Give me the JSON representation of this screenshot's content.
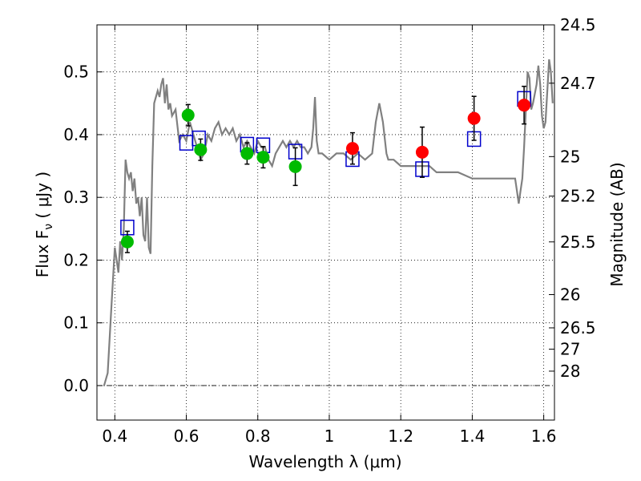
{
  "chart_data": {
    "type": "scatter",
    "xlabel": "Wavelength  λ (μm)",
    "ylabel": "Flux  F",
    "ylabel_sub": "ν",
    "ylabel_unit": "  ( μJy )",
    "y2label": "Magnitude (AB)",
    "xlim": [
      0.35,
      1.63
    ],
    "ylim": [
      -0.055,
      0.575
    ],
    "x_ticks": [
      0.4,
      0.6,
      0.8,
      1.0,
      1.2,
      1.4,
      1.6
    ],
    "x_tick_labels": [
      "0.4",
      "0.6",
      "0.8",
      "1",
      "1.2",
      "1.4",
      "1.6"
    ],
    "y_ticks": [
      0.0,
      0.1,
      0.2,
      0.3,
      0.4,
      0.5
    ],
    "y_tick_labels": [
      "0.0",
      "0.1",
      "0.2",
      "0.3",
      "0.4",
      "0.5"
    ],
    "y2_ticks": [
      {
        "flux": 0.575,
        "label": "24.5"
      },
      {
        "flux": 0.482,
        "label": "24.7"
      },
      {
        "flux": 0.365,
        "label": "25"
      },
      {
        "flux": 0.302,
        "label": "25.2"
      },
      {
        "flux": 0.229,
        "label": "25.5"
      },
      {
        "flux": 0.145,
        "label": "26"
      },
      {
        "flux": 0.092,
        "label": "26.5"
      },
      {
        "flux": 0.058,
        "label": "27"
      },
      {
        "flux": 0.023,
        "label": "28"
      }
    ],
    "grid": true,
    "colors": {
      "model": "#808080",
      "optical": "#00bb00",
      "infrared": "#ff0000",
      "model_photometry": "#0000cc",
      "errorbar": "#000000"
    },
    "series": [
      {
        "type": "line",
        "x": [
          0.37,
          0.38,
          0.39,
          0.4,
          0.41,
          0.415,
          0.42,
          0.425,
          0.43,
          0.435,
          0.44,
          0.445,
          0.45,
          0.455,
          0.46,
          0.465,
          0.47,
          0.475,
          0.48,
          0.485,
          0.49,
          0.495,
          0.5,
          0.505,
          0.51,
          0.52,
          0.525,
          0.53,
          0.535,
          0.54,
          0.545,
          0.55,
          0.555,
          0.56,
          0.57,
          0.58,
          0.59,
          0.6,
          0.61,
          0.62,
          0.63,
          0.64,
          0.65,
          0.66,
          0.67,
          0.68,
          0.69,
          0.7,
          0.71,
          0.72,
          0.73,
          0.74,
          0.75,
          0.76,
          0.77,
          0.78,
          0.79,
          0.8,
          0.81,
          0.82,
          0.83,
          0.84,
          0.85,
          0.86,
          0.87,
          0.88,
          0.89,
          0.9,
          0.91,
          0.92,
          0.93,
          0.94,
          0.95,
          0.955,
          0.96,
          0.965,
          0.97,
          0.98,
          1.0,
          1.02,
          1.04,
          1.06,
          1.08,
          1.1,
          1.12,
          1.13,
          1.14,
          1.15,
          1.16,
          1.165,
          1.17,
          1.18,
          1.2,
          1.22,
          1.25,
          1.28,
          1.3,
          1.33,
          1.36,
          1.4,
          1.44,
          1.48,
          1.5,
          1.52,
          1.525,
          1.53,
          1.535,
          1.54,
          1.545,
          1.55,
          1.555,
          1.56,
          1.565,
          1.57,
          1.58,
          1.585,
          1.59,
          1.595,
          1.6,
          1.605,
          1.61,
          1.615,
          1.62,
          1.625
        ],
        "y": [
          0.0,
          0.02,
          0.12,
          0.22,
          0.18,
          0.23,
          0.2,
          0.25,
          0.36,
          0.34,
          0.33,
          0.34,
          0.31,
          0.33,
          0.29,
          0.3,
          0.27,
          0.3,
          0.24,
          0.23,
          0.3,
          0.22,
          0.21,
          0.35,
          0.45,
          0.47,
          0.46,
          0.48,
          0.49,
          0.45,
          0.48,
          0.44,
          0.45,
          0.43,
          0.44,
          0.39,
          0.4,
          0.39,
          0.42,
          0.4,
          0.38,
          0.36,
          0.37,
          0.4,
          0.39,
          0.41,
          0.42,
          0.4,
          0.41,
          0.4,
          0.41,
          0.39,
          0.4,
          0.38,
          0.39,
          0.38,
          0.37,
          0.39,
          0.38,
          0.38,
          0.36,
          0.35,
          0.37,
          0.38,
          0.39,
          0.38,
          0.39,
          0.38,
          0.39,
          0.38,
          0.38,
          0.37,
          0.38,
          0.41,
          0.46,
          0.39,
          0.37,
          0.37,
          0.36,
          0.37,
          0.37,
          0.36,
          0.37,
          0.36,
          0.37,
          0.42,
          0.45,
          0.42,
          0.37,
          0.36,
          0.36,
          0.36,
          0.35,
          0.35,
          0.35,
          0.35,
          0.34,
          0.34,
          0.34,
          0.33,
          0.33,
          0.33,
          0.33,
          0.33,
          0.31,
          0.29,
          0.31,
          0.33,
          0.38,
          0.44,
          0.5,
          0.49,
          0.44,
          0.45,
          0.48,
          0.51,
          0.48,
          0.43,
          0.41,
          0.42,
          0.47,
          0.52,
          0.5,
          0.45
        ]
      },
      {
        "type": "squares",
        "x": [
          0.435,
          0.6,
          0.635,
          0.77,
          0.815,
          0.905,
          1.065,
          1.26,
          1.405,
          1.545
        ],
        "y": [
          0.252,
          0.387,
          0.394,
          0.384,
          0.383,
          0.373,
          0.361,
          0.345,
          0.393,
          0.457
        ]
      },
      {
        "type": "errorbar",
        "x": [
          0.435,
          0.605,
          0.64,
          0.77,
          0.815,
          0.905
        ],
        "y": [
          0.229,
          0.431,
          0.376,
          0.37,
          0.364,
          0.349
        ],
        "yerr": [
          0.017,
          0.017,
          0.017,
          0.017,
          0.017,
          0.03
        ]
      },
      {
        "type": "errorbar",
        "x": [
          1.065,
          1.26,
          1.405,
          1.545
        ],
        "y": [
          0.378,
          0.372,
          0.426,
          0.447
        ],
        "yerr": [
          0.025,
          0.04,
          0.035,
          0.03
        ]
      }
    ]
  }
}
